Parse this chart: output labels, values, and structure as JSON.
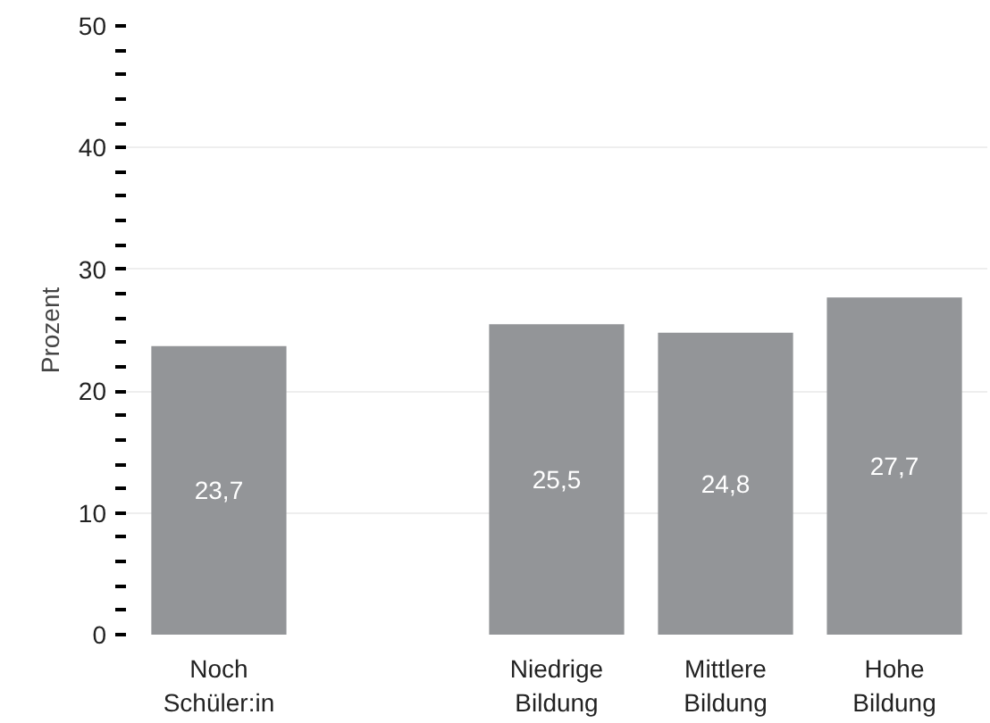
{
  "chart_data": {
    "type": "bar",
    "ylabel": "Prozent",
    "categories": [
      "Noch Schüler:in",
      null,
      "Niedrige Bildung",
      "Mittlere Bildung",
      "Hohe Bildung"
    ],
    "values": [
      23.7,
      null,
      25.5,
      24.8,
      27.7
    ],
    "value_labels": [
      "23,7",
      null,
      "25,5",
      "24,8",
      "27,7"
    ],
    "color": "#939598",
    "ylim": [
      0,
      50
    ],
    "yticks": [
      0,
      {
        "value": 2,
        "label": null
      },
      {
        "value": 4,
        "label": null
      },
      {
        "value": 6,
        "label": null
      },
      {
        "value": 8,
        "label": null
      },
      10,
      {
        "value": 12,
        "label": null
      },
      {
        "value": 14,
        "label": null
      },
      {
        "value": 16,
        "label": null
      },
      {
        "value": 18,
        "label": null
      },
      20,
      {
        "value": 22,
        "label": null
      },
      {
        "value": 24,
        "label": null
      },
      {
        "value": 26,
        "label": null
      },
      {
        "value": 28,
        "label": null
      },
      30,
      {
        "value": 32,
        "label": null
      },
      {
        "value": 34,
        "label": null
      },
      {
        "value": 36,
        "label": null
      },
      {
        "value": 38,
        "label": null
      },
      40,
      {
        "value": 42,
        "label": null
      },
      {
        "value": 44,
        "label": null
      },
      {
        "value": 46,
        "label": null
      },
      {
        "value": 48,
        "label": null
      },
      50
    ],
    "grid": "y"
  }
}
